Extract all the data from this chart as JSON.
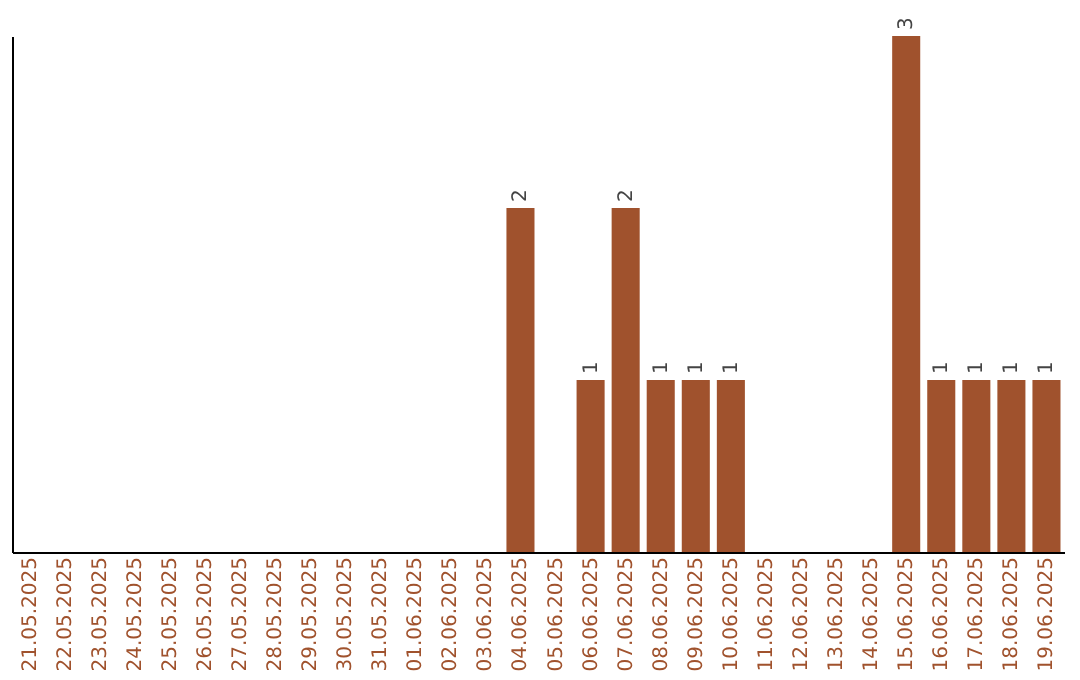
{
  "chart_data": {
    "type": "bar",
    "categories": [
      "21.05.2025",
      "22.05.2025",
      "23.05.2025",
      "24.05.2025",
      "25.05.2025",
      "26.05.2025",
      "27.05.2025",
      "28.05.2025",
      "29.05.2025",
      "30.05.2025",
      "31.05.2025",
      "01.06.2025",
      "02.06.2025",
      "03.06.2025",
      "04.06.2025",
      "05.06.2025",
      "06.06.2025",
      "07.06.2025",
      "08.06.2025",
      "09.06.2025",
      "10.06.2025",
      "11.06.2025",
      "12.06.2025",
      "13.06.2025",
      "14.06.2025",
      "15.06.2025",
      "16.06.2025",
      "17.06.2025",
      "18.06.2025",
      "19.06.2025"
    ],
    "values": [
      null,
      null,
      null,
      null,
      null,
      null,
      null,
      null,
      null,
      null,
      null,
      null,
      null,
      null,
      2,
      null,
      1,
      2,
      1,
      1,
      1,
      null,
      null,
      null,
      null,
      3,
      1,
      1,
      1,
      1
    ],
    "value_labels": [
      null,
      null,
      null,
      null,
      null,
      null,
      null,
      null,
      null,
      null,
      null,
      null,
      null,
      null,
      "2",
      null,
      "1",
      "2",
      "1",
      "1",
      "1",
      null,
      null,
      null,
      null,
      "3",
      "1",
      "1",
      "1",
      "1"
    ],
    "color": "#a0522d",
    "tick_labels": "x",
    "grid": false
  }
}
